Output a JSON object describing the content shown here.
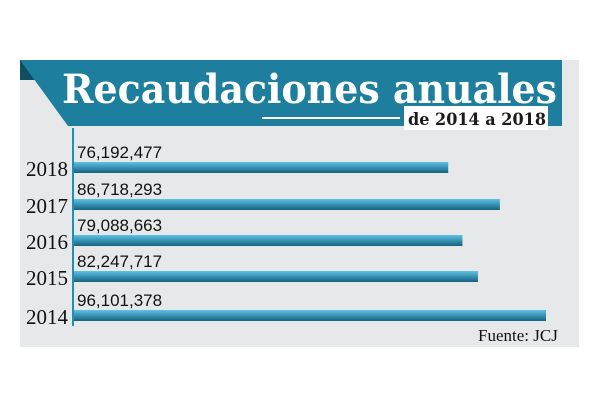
{
  "colors": {
    "banner": "#1d7f9d",
    "banner_dark": "#0e4f63",
    "bar_top": "#5fc2e6",
    "bar_bottom": "#14627f",
    "axis": "#1e8fb8",
    "background": "#e7e8e9"
  },
  "chart_data": {
    "type": "bar",
    "orientation": "horizontal",
    "title": "Recaudaciones anuales",
    "subtitle": "de 2014 a 2018",
    "categories": [
      "2018",
      "2017",
      "2016",
      "2015",
      "2014"
    ],
    "values": [
      76192477,
      86718293,
      79088663,
      82247717,
      96101378
    ],
    "value_labels": [
      "76,192,477",
      "86,718,293",
      "79,088,663",
      "82,247,717",
      "96,101,378"
    ],
    "xlim": [
      0,
      96101378
    ],
    "grid": false,
    "legend": "none",
    "source": "Fuente: JCJ"
  }
}
